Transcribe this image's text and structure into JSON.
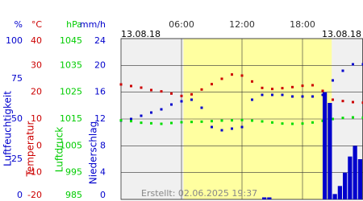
{
  "chart_data": {
    "type": "line",
    "date_left": "13.08.18",
    "date_right": "13.08.18",
    "created": "Erstellt: 02.06.2025 19:37",
    "xlim": [
      0,
      24
    ],
    "xticks": [
      {
        "value": 6,
        "label": "06:00"
      },
      {
        "value": 12,
        "label": "12:00"
      },
      {
        "value": 18,
        "label": "18:00"
      }
    ],
    "daylight": [
      6.2,
      20.9
    ],
    "grid": true,
    "axes": [
      {
        "unit": "%",
        "title": "Luftfeuchtigkeit",
        "color": "#0000cc",
        "lim": [
          0,
          100
        ],
        "ticks": [
          100,
          75,
          50,
          25,
          0
        ]
      },
      {
        "unit": "°C",
        "title": "Temperatur",
        "color": "#cc0000",
        "lim": [
          -20,
          40
        ],
        "ticks": [
          40,
          30,
          20,
          10,
          0,
          -10,
          -20
        ]
      },
      {
        "unit": "hPa",
        "title": "Luftdruck",
        "color": "#00cc00",
        "lim": [
          985,
          1045
        ],
        "ticks": [
          1045,
          1035,
          1025,
          1015,
          1005,
          995,
          985
        ]
      },
      {
        "unit": "mm/h",
        "title": "Niederschlag",
        "color": "#0000cc",
        "lim": [
          0,
          24
        ],
        "ticks": [
          24,
          20,
          16,
          12,
          8,
          4,
          0
        ]
      }
    ],
    "series": [
      {
        "axis": 0,
        "kind": "dots",
        "color": "#0000cc",
        "x": [
          0,
          1,
          2,
          3,
          4,
          5,
          6,
          7,
          8,
          9,
          10,
          11,
          12,
          13,
          14,
          15,
          16,
          17,
          18,
          19,
          20,
          21,
          22,
          23,
          24
        ],
        "values": [
          49,
          50,
          52,
          54,
          56,
          59,
          61,
          62,
          57,
          45,
          43,
          44,
          45,
          62,
          65,
          65,
          65,
          64,
          64,
          64,
          65,
          74,
          80,
          84,
          84
        ]
      },
      {
        "axis": 1,
        "kind": "dots",
        "color": "#cc0000",
        "x": [
          0,
          1,
          2,
          3,
          4,
          5,
          6,
          7,
          8,
          9,
          10,
          11,
          12,
          13,
          14,
          15,
          16,
          17,
          18,
          19,
          20,
          21,
          22,
          23,
          24
        ],
        "values": [
          22.9,
          22.3,
          21.7,
          20.8,
          20.3,
          19.5,
          18.6,
          19.2,
          21,
          23,
          25,
          26.6,
          26.2,
          24,
          21.6,
          21.2,
          21.5,
          21.9,
          22.4,
          22.6,
          20.5,
          17.2,
          16.7,
          16.3,
          16.1
        ]
      },
      {
        "axis": 2,
        "kind": "dots",
        "color": "#00dd00",
        "x": [
          0,
          1,
          2,
          3,
          4,
          5,
          6,
          7,
          8,
          9,
          10,
          11,
          12,
          13,
          14,
          15,
          16,
          17,
          18,
          19,
          20,
          21,
          22,
          23,
          24
        ],
        "values": [
          1014.5,
          1014.2,
          1013.6,
          1013.4,
          1013.2,
          1013.5,
          1013.8,
          1013.9,
          1014,
          1014.2,
          1014.4,
          1014.5,
          1014.6,
          1014.4,
          1014.1,
          1013.7,
          1013.3,
          1013.2,
          1013.3,
          1013.7,
          1014.3,
          1015,
          1015.4,
          1015.6,
          1015.5
        ]
      },
      {
        "axis": 3,
        "kind": "bars",
        "color": "#0000cc",
        "x": [
          14,
          14.5,
          20,
          20.5,
          21,
          21.5,
          22,
          22.5,
          23,
          23.5
        ],
        "values": [
          0.3,
          0.3,
          16,
          14.4,
          0.8,
          2,
          4,
          6.4,
          8,
          6
        ]
      }
    ]
  }
}
